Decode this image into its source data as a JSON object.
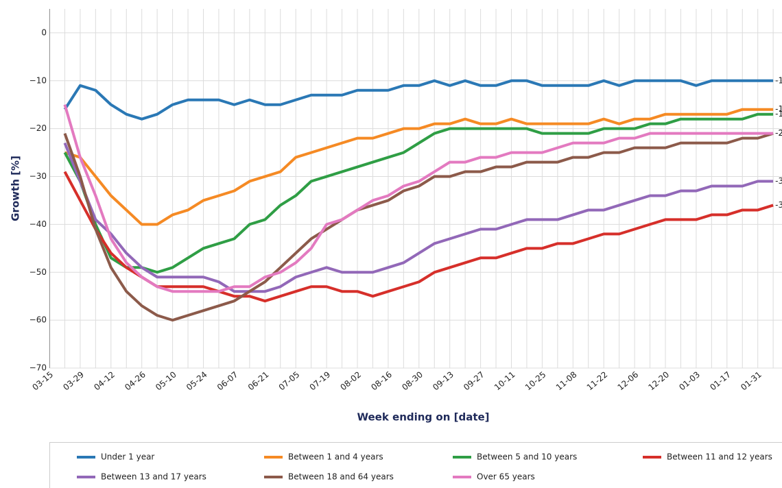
{
  "chart_data": {
    "type": "line",
    "x_label": "Week ending on [date]",
    "y_label": "Growth [%]",
    "categories": [
      "03-15",
      null,
      "03-29",
      null,
      "04-12",
      null,
      "04-26",
      null,
      "05-10",
      null,
      "05-24",
      null,
      "06-07",
      null,
      "06-21",
      null,
      "07-05",
      null,
      "07-19",
      null,
      "08-02",
      null,
      "08-16",
      null,
      "08-30",
      null,
      "09-13",
      null,
      "09-27",
      null,
      "10-11",
      null,
      "10-25",
      null,
      "11-08",
      null,
      "11-22",
      null,
      "12-06",
      null,
      "12-20",
      null,
      "01-03",
      null,
      "01-17",
      null,
      "01-31",
      null
    ],
    "ylim": [
      -70,
      5
    ],
    "yticks": [
      {
        "value": -70,
        "label": "−70"
      },
      {
        "value": -60,
        "label": "−60"
      },
      {
        "value": -50,
        "label": "−50"
      },
      {
        "value": -40,
        "label": "−40"
      },
      {
        "value": -30,
        "label": "−30"
      },
      {
        "value": -20,
        "label": "−20"
      },
      {
        "value": -10,
        "label": "−10"
      },
      0
    ],
    "grid": true,
    "legend": "bottom",
    "series": [
      {
        "name": "Under 1 year",
        "color": "#2a78b5",
        "values": [
          null,
          -16,
          -11,
          -12,
          -15,
          -17,
          -18,
          -17,
          -15,
          -14,
          -14,
          -14,
          -15,
          -14,
          -15,
          -15,
          -14,
          -13,
          -13,
          -13,
          -12,
          -12,
          -12,
          -11,
          -11,
          -10,
          -11,
          -10,
          -11,
          -11,
          -10,
          -10,
          -11,
          -11,
          -11,
          -11,
          -10,
          -11,
          -10,
          -10,
          -10,
          -10,
          -11,
          -10,
          -10,
          -10,
          -10,
          -10
        ]
      },
      {
        "name": "Between 1 and 4 years",
        "color": "#f58a24",
        "values": [
          null,
          -25,
          -26,
          -30,
          -34,
          -37,
          -40,
          -40,
          -38,
          -37,
          -35,
          -34,
          -33,
          -31,
          -30,
          -29,
          -26,
          -25,
          -24,
          -23,
          -22,
          -22,
          -21,
          -20,
          -20,
          -19,
          -19,
          -18,
          -19,
          -19,
          -18,
          -19,
          -19,
          -19,
          -19,
          -19,
          -18,
          -19,
          -18,
          -18,
          -17,
          -17,
          -17,
          -17,
          -17,
          -16,
          -16,
          -16
        ]
      },
      {
        "name": "Between 5 and 10 years",
        "color": "#2f9e45",
        "values": [
          null,
          -25,
          -31,
          -40,
          -47,
          -49,
          -49,
          -50,
          -49,
          -47,
          -45,
          -44,
          -43,
          -40,
          -39,
          -36,
          -34,
          -31,
          -30,
          -29,
          -28,
          -27,
          -26,
          -25,
          -23,
          -21,
          -20,
          -20,
          -20,
          -20,
          -20,
          -20,
          -21,
          -21,
          -21,
          -21,
          -20,
          -20,
          -20,
          -19,
          -19,
          -18,
          -18,
          -18,
          -18,
          -18,
          -17,
          -17
        ]
      },
      {
        "name": "Between 11 and 12 years",
        "color": "#d62f2a",
        "values": [
          null,
          -29,
          -35,
          -41,
          -46,
          -49,
          -51,
          -53,
          -53,
          -53,
          -53,
          -54,
          -55,
          -55,
          -56,
          -55,
          -54,
          -53,
          -53,
          -54,
          -54,
          -55,
          -54,
          -53,
          -52,
          -50,
          -49,
          -48,
          -47,
          -47,
          -46,
          -45,
          -45,
          -44,
          -44,
          -43,
          -42,
          -42,
          -41,
          -40,
          -39,
          -39,
          -39,
          -38,
          -38,
          -37,
          -37,
          -36
        ]
      },
      {
        "name": "Between 13 and 17 years",
        "color": "#9268b8",
        "values": [
          null,
          -23,
          -31,
          -39,
          -42,
          -46,
          -49,
          -51,
          -51,
          -51,
          -51,
          -52,
          -54,
          -54,
          -54,
          -53,
          -51,
          -50,
          -49,
          -50,
          -50,
          -50,
          -49,
          -48,
          -46,
          -44,
          -43,
          -42,
          -41,
          -41,
          -40,
          -39,
          -39,
          -39,
          -38,
          -37,
          -37,
          -36,
          -35,
          -34,
          -34,
          -33,
          -33,
          -32,
          -32,
          -32,
          -31,
          -31
        ]
      },
      {
        "name": "Between 18 and 64 years",
        "color": "#8c5a4a",
        "values": [
          null,
          -21,
          -30,
          -41,
          -49,
          -54,
          -57,
          -59,
          -60,
          -59,
          -58,
          -57,
          -56,
          -54,
          -52,
          -49,
          -46,
          -43,
          -41,
          -39,
          -37,
          -36,
          -35,
          -33,
          -32,
          -30,
          -30,
          -29,
          -29,
          -28,
          -28,
          -27,
          -27,
          -27,
          -26,
          -26,
          -25,
          -25,
          -24,
          -24,
          -24,
          -23,
          -23,
          -23,
          -23,
          -22,
          -22,
          -21
        ]
      },
      {
        "name": "Over 65 years",
        "color": "#e37ac0",
        "values": [
          null,
          -15,
          -26,
          -34,
          -43,
          -48,
          -51,
          -53,
          -54,
          -54,
          -54,
          -54,
          -53,
          -53,
          -51,
          -50,
          -48,
          -45,
          -40,
          -39,
          -37,
          -35,
          -34,
          -32,
          -31,
          -29,
          -27,
          -27,
          -26,
          -26,
          -25,
          -25,
          -25,
          -24,
          -23,
          -23,
          -23,
          -22,
          -22,
          -21,
          -21,
          -21,
          -21,
          -21,
          -21,
          -21,
          -21,
          -21
        ]
      }
    ]
  }
}
